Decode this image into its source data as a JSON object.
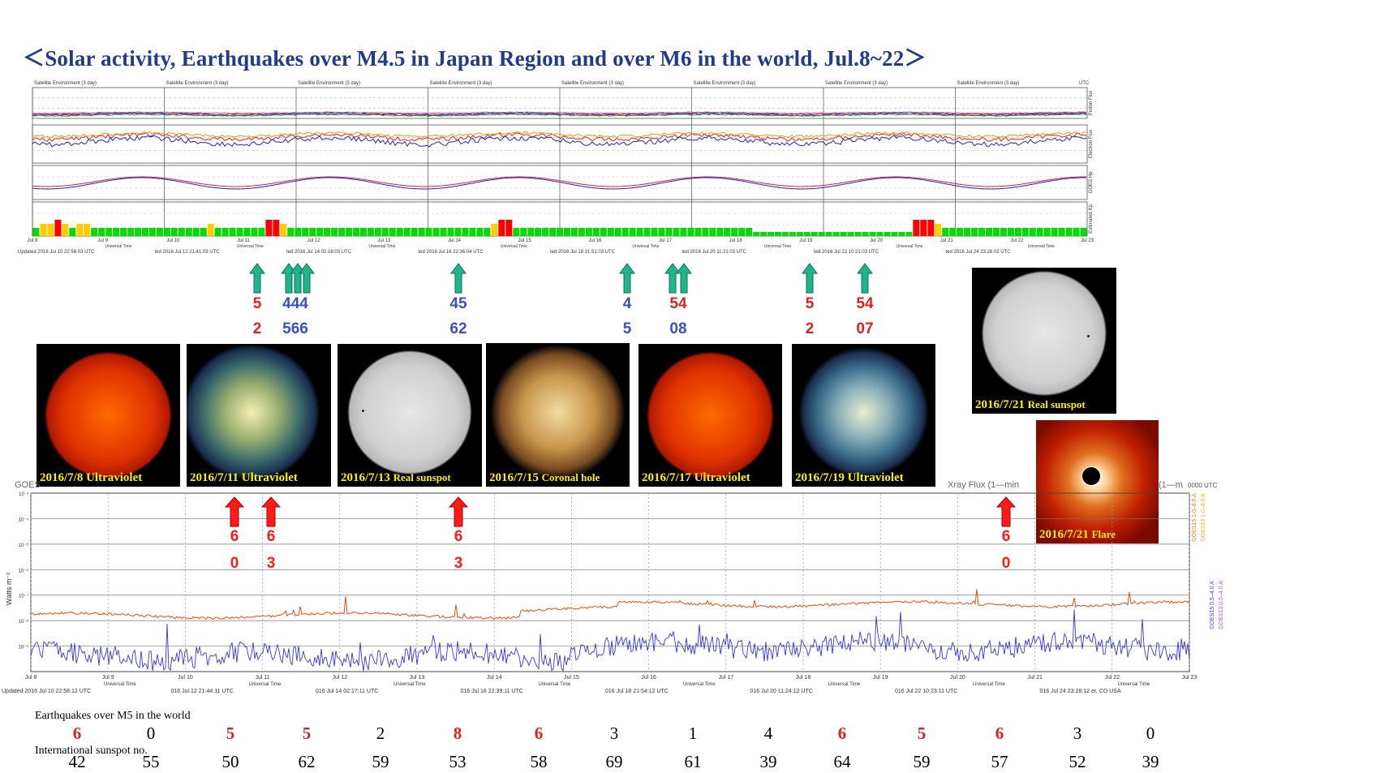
{
  "title": "＜Solar activity, Earthquakes over M4.5 in Japan Region and over M6 in the world, Jul.8~22＞",
  "satellite_panel": {
    "panel_titles": [
      "Satellite Environment (3 day)",
      "Satellite Environment (3 day)",
      "Satellite Environment (3 day)",
      "Satellite Environment (3 day)",
      "Satellite Environment (3 day)",
      "Satellite Environment (3 day)",
      "Satellite Environment (3 day)",
      "Satellite Environment (3 day)"
    ],
    "utc": "UTC",
    "right_labels": [
      "Proton Flux",
      "Electron Flux",
      "GOES Hp",
      "Estimated Kp"
    ],
    "date_ticks": [
      "Jul 8",
      "Jul 9",
      "Jul 10",
      "Jul 11",
      "Jul 12",
      "Jul 13",
      "Jul 14",
      "Jul 15",
      "Jul 16",
      "Jul 17",
      "Jul 18",
      "Jul 19",
      "Jul 20",
      "Jul 21",
      "Jul 22",
      "Jul 23"
    ],
    "universal_time": "Universal Time",
    "updated": [
      "Updated 2016 Jul 10 22:56:03 UTC",
      "ted 2016 Jul 12 21:41:03 UTC",
      "ted 2016 Jul 14 02:16:03 UTC",
      "ted 2016 Jul 16 22:36:04 UTC",
      "ted 2016 Jul 18 21:51:03 UTC",
      "ted 2016 Jul 20 11:21:03 UTC",
      "ted 2016 Jul 22 10:21:03 UTC",
      "ted 2016 Jul 24 23:26:02 UTC"
    ]
  },
  "japan_quakes": [
    {
      "top": "5",
      "bottom": "2",
      "top_color": "#e02020",
      "bottom_color": "#e02020"
    },
    {
      "top": "444",
      "bottom": "566",
      "top_color": "#3a4fc0",
      "bottom_color": "#3a4fc0"
    },
    {
      "top": "45",
      "bottom": "62",
      "top_color": "#3a4fc0",
      "bottom_color": "#3a4fc0"
    },
    {
      "top": "4",
      "bottom": "5",
      "top_color": "#3a4fc0",
      "bottom_color": "#3a4fc0"
    },
    {
      "top": "54",
      "bottom": "08",
      "top_color": "#e02020",
      "bottom_color": "#3a4fc0"
    },
    {
      "top": "5",
      "bottom": "2",
      "top_color": "#e02020",
      "bottom_color": "#e02020"
    },
    {
      "top": "54",
      "bottom": "07",
      "top_color": "#e02020",
      "bottom_color": "#e02020"
    }
  ],
  "world_quakes": [
    {
      "top": "6",
      "bottom": "0"
    },
    {
      "top": "6",
      "bottom": "3"
    },
    {
      "top": "6",
      "bottom": "3"
    },
    {
      "top": "6",
      "bottom": "0"
    }
  ],
  "images": [
    {
      "date": "2016/7/8",
      "kind": "Ultraviolet"
    },
    {
      "date": "2016/7/11",
      "kind": "Ultraviolet"
    },
    {
      "date": "2016/7/13",
      "kind": "Real sunspot"
    },
    {
      "date": "2016/7/15",
      "kind": "Coronal hole"
    },
    {
      "date": "2016/7/17",
      "kind": "Ultraviolet"
    },
    {
      "date": "2016/7/19",
      "kind": "Ultraviolet"
    },
    {
      "date": "2016/7/21",
      "kind": "Real sunspot"
    },
    {
      "date": "2016/7/21",
      "kind": "Flare"
    }
  ],
  "xray_panel": {
    "title_left": "GOES",
    "title_fragment": "Xray Flux (1—min",
    "title_right": "(1—m",
    "title_utc": "0000 UTC",
    "ylabel": "Watts m⁻²",
    "y_ticks": [
      "10⁻³",
      "10⁻⁴",
      "10⁻⁵",
      "10⁻⁶",
      "10⁻⁷",
      "10⁻⁸",
      "10⁻⁹"
    ],
    "right_legend": [
      "GOES15 1.0–8.0 A",
      "GOES13 1.0–8.0 A",
      "GOES15 0.5–4.0 A",
      "GOES13 0.5–4.0 A"
    ],
    "date_ticks": [
      "Jul 8",
      "Jul 9",
      "Jul 10",
      "Jul 11",
      "Jul 12",
      "Jul 13",
      "Jul 14",
      "Jul 15",
      "Jul 16",
      "Jul 17",
      "Jul 18",
      "Jul 19",
      "Jul 20",
      "Jul 21",
      "Jul 22",
      "Jul 23"
    ],
    "universal_time": "Universal Time",
    "updated": [
      "Updated 2016 Jul 10 22:58:12 UTC",
      "016 Jul 12 21:44:11 UTC",
      "016 Jul 14 02:17:11 UTC",
      "016 Jul 16 22:39:11 UTC",
      "016 Jul 18 21:54:12 UTC",
      "016 Jul 20 11:24:12 UTC",
      "016 Jul 22 10:23:11 UTC",
      "016 Jul 24 23:28:12 er, CO USA"
    ]
  },
  "table": {
    "eq_label": "Earthquakes over M5 in the world",
    "ss_label": "International sunspot no.",
    "red_color": "#e02020",
    "eq": [
      {
        "v": "6",
        "red": true
      },
      {
        "v": "0",
        "red": false
      },
      {
        "v": "5",
        "red": true
      },
      {
        "v": "5",
        "red": true
      },
      {
        "v": "2",
        "red": false
      },
      {
        "v": "8",
        "red": true
      },
      {
        "v": "6",
        "red": true
      },
      {
        "v": "3",
        "red": false
      },
      {
        "v": "1",
        "red": false
      },
      {
        "v": "4",
        "red": false
      },
      {
        "v": "6",
        "red": true
      },
      {
        "v": "5",
        "red": true
      },
      {
        "v": "6",
        "red": true
      },
      {
        "v": "3",
        "red": false
      },
      {
        "v": "0",
        "red": false
      }
    ],
    "sunspots": [
      "42",
      "55",
      "50",
      "62",
      "59",
      "53",
      "58",
      "69",
      "61",
      "39",
      "64",
      "59",
      "57",
      "52",
      "39"
    ]
  },
  "chart_data": {
    "type": "table",
    "categories": [
      "Jul 8",
      "Jul 9",
      "Jul 10",
      "Jul 11",
      "Jul 12",
      "Jul 13",
      "Jul 14",
      "Jul 15",
      "Jul 16",
      "Jul 17",
      "Jul 18",
      "Jul 19",
      "Jul 20",
      "Jul 21",
      "Jul 22"
    ],
    "series": [
      {
        "name": "Earthquakes over M5 in the world",
        "values": [
          6,
          0,
          5,
          5,
          2,
          8,
          6,
          3,
          1,
          4,
          6,
          5,
          6,
          3,
          0
        ]
      },
      {
        "name": "International sunspot no.",
        "values": [
          42,
          55,
          50,
          62,
          59,
          53,
          58,
          69,
          61,
          39,
          64,
          59,
          57,
          52,
          39
        ]
      }
    ],
    "estimated_kp": [
      2,
      3,
      3,
      4,
      3,
      2,
      3,
      3,
      2,
      2,
      2,
      2,
      2,
      2,
      2,
      2,
      2,
      2,
      2,
      2,
      2,
      2,
      2,
      2,
      3,
      2,
      2,
      2,
      2,
      2,
      2,
      2,
      4,
      4,
      3,
      2,
      2,
      2,
      2,
      2,
      2,
      2,
      2,
      2,
      2,
      2,
      2,
      2,
      2,
      2,
      2,
      2,
      2,
      2,
      2,
      2,
      2,
      2,
      2,
      2,
      2,
      2,
      2,
      3,
      4,
      4,
      2,
      2,
      2,
      2,
      2,
      2,
      2,
      2,
      2,
      2,
      2,
      2,
      2,
      2,
      2,
      2,
      2,
      2,
      2,
      2,
      2,
      2,
      2,
      2,
      2,
      2,
      2,
      2,
      2,
      2,
      2,
      2,
      2,
      1,
      1,
      1,
      1,
      1,
      1,
      1,
      1,
      1,
      1,
      1,
      1,
      1,
      1,
      1,
      1,
      1,
      1,
      1,
      1,
      1,
      1,
      4,
      4,
      4,
      3,
      2,
      2,
      2,
      2,
      2,
      2,
      2,
      2,
      2,
      2,
      2,
      2,
      2,
      2,
      2,
      2,
      2,
      2,
      2,
      2
    ]
  },
  "colors": {
    "title": "#1f3c8c",
    "arrow_green": "#1fb58a",
    "arrow_red": "#ff1a1a",
    "kp_green": "#00dd00",
    "kp_yellow": "#ffcc00",
    "kp_red": "#ff0000",
    "caption": "#ffef00"
  }
}
